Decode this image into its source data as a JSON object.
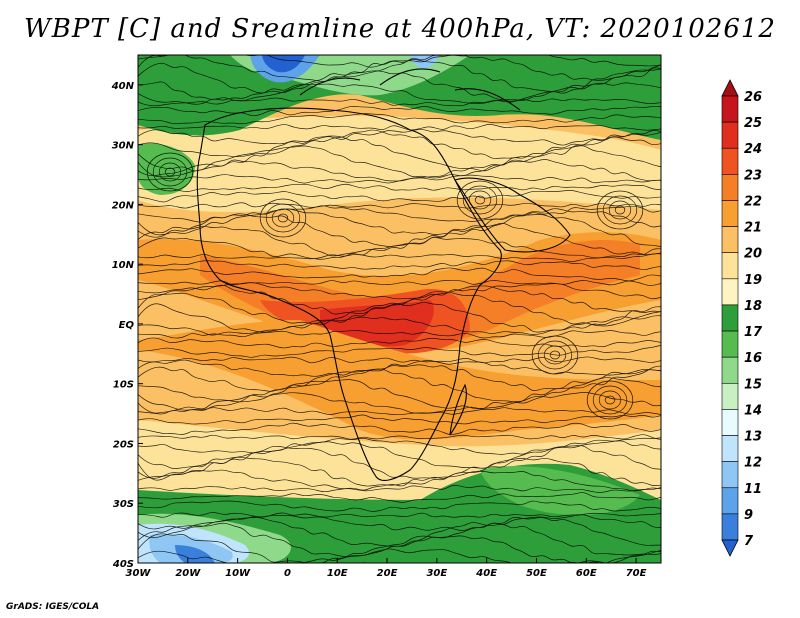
{
  "title": "WBPT [C] and Sreamline at 400hPa, VT: 2020102612",
  "credit": "GrADS: IGES/COLA",
  "chart_data": {
    "type": "map",
    "variable": "WBPT [C]",
    "level": "400hPa",
    "valid_time": "2020102612",
    "lon_range": [
      -30,
      75
    ],
    "lat_range": [
      -40,
      45
    ],
    "lon_ticks": [
      "30W",
      "20W",
      "10W",
      "0",
      "10E",
      "20E",
      "30E",
      "40E",
      "50E",
      "60E",
      "70E"
    ],
    "lat_ticks": [
      "40N",
      "30N",
      "20N",
      "10N",
      "EQ",
      "10S",
      "20S",
      "30S",
      "40S"
    ],
    "colorbar": {
      "labels": [
        "26",
        "25",
        "24",
        "23",
        "22",
        "21",
        "20",
        "19",
        "18",
        "17",
        "16",
        "15",
        "14",
        "13",
        "12",
        "11",
        "9",
        "7"
      ],
      "colors": [
        "#a50f15",
        "#c4161c",
        "#e02f1e",
        "#ef5322",
        "#f57f26",
        "#f79f31",
        "#fbc064",
        "#fde39a",
        "#fdf4c2",
        "#2e9e3a",
        "#56bc4f",
        "#8fd98a",
        "#c8f0c3",
        "#e8fbff",
        "#bfe4fb",
        "#8fc7f4",
        "#5ea3ea",
        "#3a7fdc",
        "#2361d0"
      ]
    }
  }
}
